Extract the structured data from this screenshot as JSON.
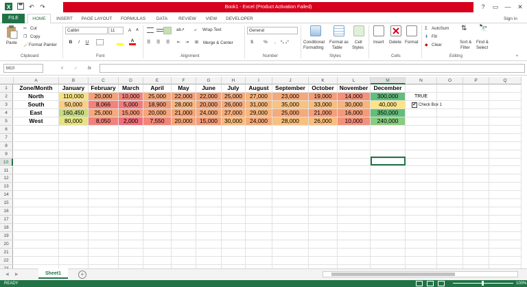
{
  "window": {
    "title": "Book1 - Excel (Product Activation Failed)",
    "help": "?",
    "minimize": "—",
    "restore": "❐",
    "close": "✕",
    "ribbon_opts": "▭"
  },
  "quick_access": {
    "save": "💾",
    "undo": "↶",
    "redo": "↷"
  },
  "tabs": [
    {
      "label": "FILE"
    },
    {
      "label": "HOME"
    },
    {
      "label": "INSERT"
    },
    {
      "label": "PAGE LAYOUT"
    },
    {
      "label": "FORMULAS"
    },
    {
      "label": "DATA"
    },
    {
      "label": "REVIEW"
    },
    {
      "label": "VIEW"
    },
    {
      "label": "DEVELOPER"
    }
  ],
  "sign_in": "Sign in",
  "ribbon": {
    "clipboard": {
      "paste": "Paste",
      "cut": "Cut",
      "copy": "Copy",
      "format_painter": "Format Painter",
      "group": "Clipboard"
    },
    "font": {
      "name": "Calibri",
      "size": "11",
      "bold": "B",
      "italic": "I",
      "underline": "U",
      "group": "Font"
    },
    "alignment": {
      "wrap_text": "Wrap Text",
      "merge_center": "Merge & Center",
      "group": "Alignment"
    },
    "number": {
      "format": "General",
      "currency": "$",
      "percent": "%",
      "comma": ",",
      "group": "Number"
    },
    "styles": {
      "conditional": "Conditional",
      "conditional2": "Formatting",
      "format_as": "Format as",
      "format_as2": "Table",
      "cell": "Cell",
      "cell2": "Styles",
      "group": "Styles"
    },
    "cells": {
      "insert": "Insert",
      "delete": "Delete",
      "format": "Format",
      "group": "Cells"
    },
    "editing": {
      "autosum": "AutoSum",
      "fill": "Fill",
      "clear": "Clear",
      "sort": "Sort &",
      "sort2": "Filter",
      "find": "Find &",
      "find2": "Select",
      "group": "Editing"
    }
  },
  "formula_bar": {
    "name_box": "M10",
    "cancel": "✕",
    "enter": "✓",
    "fx": "fx",
    "value": ""
  },
  "columns": [
    "A",
    "B",
    "C",
    "D",
    "E",
    "F",
    "G",
    "H",
    "I",
    "J",
    "K",
    "L",
    "M",
    "N",
    "O",
    "P",
    "Q"
  ],
  "rows": [
    "1",
    "2",
    "3",
    "4",
    "5",
    "6",
    "7",
    "8",
    "9",
    "10",
    "11",
    "12",
    "13",
    "14",
    "15",
    "16",
    "17",
    "18",
    "19",
    "20",
    "21",
    "22",
    "23"
  ],
  "headers": [
    "Zone/Month",
    "January",
    "February",
    "March",
    "April",
    "May",
    "June",
    "July",
    "August",
    "September",
    "October",
    "November",
    "December"
  ],
  "data": [
    {
      "zone": "North",
      "values": [
        "110,000",
        "20,000",
        "10,000",
        "25,000",
        "22,000",
        "22,000",
        "25,000",
        "27,000",
        "23,000",
        "19,000",
        "14,000",
        "300,000"
      ]
    },
    {
      "zone": "South",
      "values": [
        "50,000",
        "8,066",
        "5,000",
        "18,900",
        "28,000",
        "20,000",
        "26,000",
        "31,000",
        "35,000",
        "33,000",
        "30,000",
        "40,000"
      ]
    },
    {
      "zone": "East",
      "values": [
        "160,450",
        "25,000",
        "15,000",
        "20,000",
        "21,000",
        "24,000",
        "27,000",
        "29,000",
        "25,000",
        "21,000",
        "16,000",
        "350,000"
      ]
    },
    {
      "zone": "West",
      "values": [
        "80,000",
        "8,050",
        "2,000",
        "7,550",
        "20,000",
        "15,000",
        "30,000",
        "24,000",
        "28,000",
        "26,000",
        "10,000",
        "240,000"
      ]
    }
  ],
  "cell_colors": [
    [
      "#f7e283",
      "#f5a178",
      "#f1857d",
      "#f6a97a",
      "#f5a279",
      "#f5a279",
      "#f6a97a",
      "#f8b27a",
      "#f6a87a",
      "#f49e79",
      "#f3917b",
      "#63be7b"
    ],
    [
      "#fbcf7e",
      "#f2827a",
      "#f27b7a",
      "#f49a79",
      "#f9b67b",
      "#f5a579",
      "#f6ab7a",
      "#f8b87b",
      "#f9c27d",
      "#f8bd7c",
      "#f8b47b",
      "#fee382"
    ],
    [
      "#c6db81",
      "#f6a97a",
      "#f5977b",
      "#f5a579",
      "#f5a579",
      "#f6ab7a",
      "#f6ad7a",
      "#f8b47b",
      "#f6a97a",
      "#f49e79",
      "#f49a79",
      "#63be7b"
    ],
    [
      "#e6e383",
      "#f2817a",
      "#ef6e7a",
      "#f18579",
      "#f5a579",
      "#f59b79",
      "#f8bb7c",
      "#f6ab7a",
      "#f9bf7c",
      "#f9bd7c",
      "#f3907b",
      "#8acb7f"
    ]
  ],
  "checkbox": {
    "link_value": "TRUE",
    "label": "Check Box 1",
    "checked": true
  },
  "sheet_tabs": [
    {
      "label": "Sheet1"
    }
  ],
  "add_sheet": "+",
  "status": {
    "mode": "READY",
    "zoom": "100%"
  }
}
